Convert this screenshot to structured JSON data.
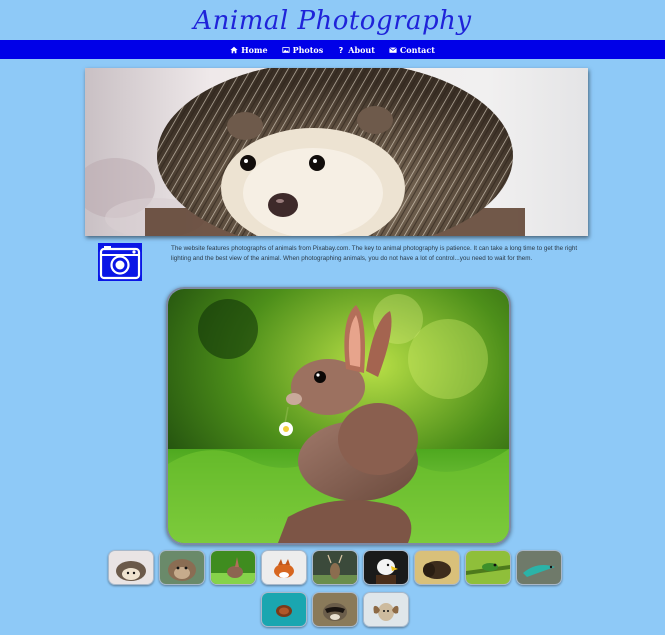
{
  "site": {
    "title": "Animal Photography"
  },
  "nav": {
    "items": [
      {
        "label": "Home",
        "icon": "home-icon"
      },
      {
        "label": "Photos",
        "icon": "photos-icon"
      },
      {
        "label": "About",
        "icon": "question-icon"
      },
      {
        "label": "Contact",
        "icon": "envelope-icon"
      }
    ]
  },
  "hero": {
    "subject": "hedgehog"
  },
  "intro": {
    "icon": "camera-icon",
    "text": "The website features photographs of animals from Pixabay.com. The key to animal photography is patience. It can take a long time to get the right lighting and the best view of the animal. When photographing animals, you do not have a lot of control...you need to wait for them."
  },
  "main_photo": {
    "subject": "rabbit"
  },
  "thumbnails": [
    {
      "subject": "hedgehog"
    },
    {
      "subject": "otter"
    },
    {
      "subject": "rabbit"
    },
    {
      "subject": "fox"
    },
    {
      "subject": "deer"
    },
    {
      "subject": "eagle"
    },
    {
      "subject": "bison"
    },
    {
      "subject": "frog"
    },
    {
      "subject": "lizard"
    },
    {
      "subject": "turtle"
    },
    {
      "subject": "raccoon"
    },
    {
      "subject": "ram"
    }
  ],
  "colors": {
    "background": "#8ec9f7",
    "nav": "#0000e8",
    "title": "#1f23d9"
  }
}
